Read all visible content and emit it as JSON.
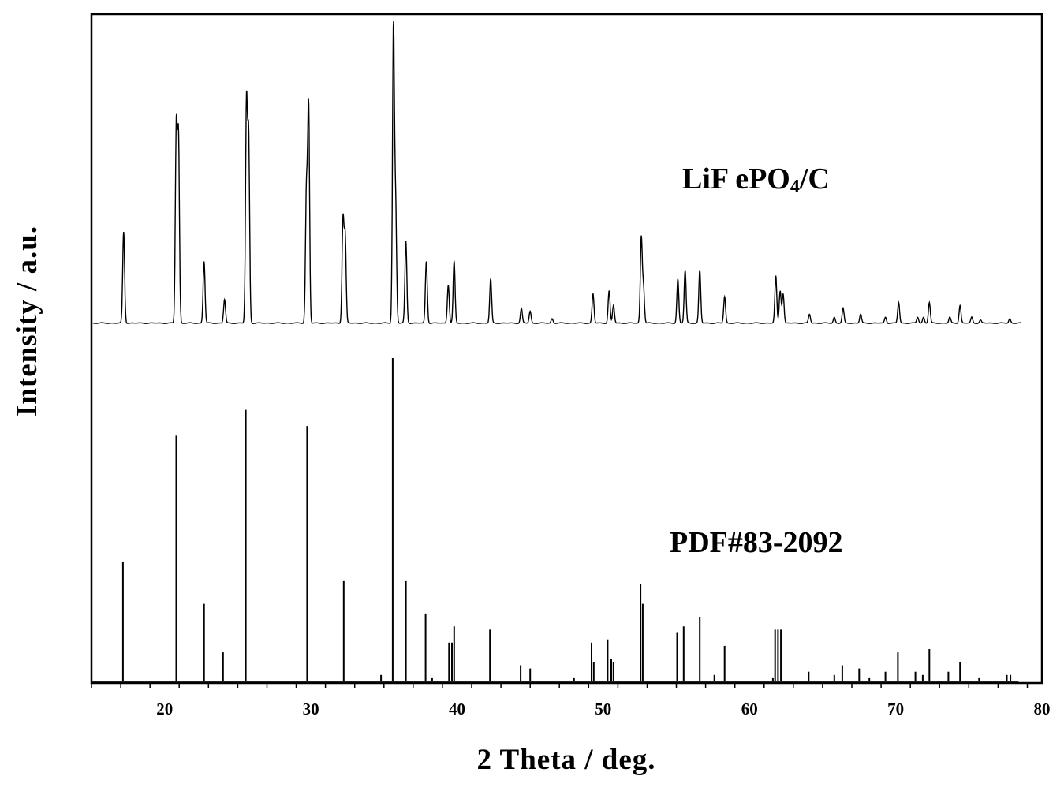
{
  "chart_data": {
    "type": "line",
    "xlabel": "2 Theta / deg.",
    "ylabel": "Intensity / a.u.",
    "xlim": [
      15,
      80
    ],
    "xticks": [
      20,
      30,
      40,
      50,
      60,
      70,
      80
    ],
    "yticks": [],
    "grid": false,
    "legend": "none",
    "series": [
      {
        "name": "LiFePO4/C",
        "style": "line",
        "label_parts": [
          "LiF ePO",
          "4",
          "/C"
        ],
        "peaks": [
          {
            "x": 17.2,
            "y": 31
          },
          {
            "x": 20.8,
            "y": 66
          },
          {
            "x": 20.95,
            "y": 62
          },
          {
            "x": 22.7,
            "y": 21
          },
          {
            "x": 24.1,
            "y": 8
          },
          {
            "x": 25.6,
            "y": 74
          },
          {
            "x": 25.75,
            "y": 62
          },
          {
            "x": 29.7,
            "y": 44
          },
          {
            "x": 29.85,
            "y": 73
          },
          {
            "x": 32.2,
            "y": 35
          },
          {
            "x": 32.35,
            "y": 29
          },
          {
            "x": 35.65,
            "y": 100
          },
          {
            "x": 35.8,
            "y": 39
          },
          {
            "x": 36.5,
            "y": 28
          },
          {
            "x": 37.9,
            "y": 21
          },
          {
            "x": 39.4,
            "y": 13
          },
          {
            "x": 39.8,
            "y": 21
          },
          {
            "x": 42.3,
            "y": 15
          },
          {
            "x": 44.4,
            "y": 5
          },
          {
            "x": 45.0,
            "y": 4
          },
          {
            "x": 46.5,
            "y": 1.5
          },
          {
            "x": 49.3,
            "y": 10
          },
          {
            "x": 50.4,
            "y": 11
          },
          {
            "x": 50.7,
            "y": 6
          },
          {
            "x": 52.6,
            "y": 29
          },
          {
            "x": 52.75,
            "y": 12
          },
          {
            "x": 55.1,
            "y": 15
          },
          {
            "x": 55.6,
            "y": 18
          },
          {
            "x": 56.6,
            "y": 18
          },
          {
            "x": 58.3,
            "y": 9
          },
          {
            "x": 61.8,
            "y": 16
          },
          {
            "x": 62.1,
            "y": 11
          },
          {
            "x": 62.3,
            "y": 10
          },
          {
            "x": 64.1,
            "y": 3
          },
          {
            "x": 65.8,
            "y": 2
          },
          {
            "x": 66.4,
            "y": 5
          },
          {
            "x": 67.6,
            "y": 3
          },
          {
            "x": 69.3,
            "y": 2
          },
          {
            "x": 70.2,
            "y": 7
          },
          {
            "x": 71.5,
            "y": 2
          },
          {
            "x": 71.9,
            "y": 2
          },
          {
            "x": 72.3,
            "y": 7
          },
          {
            "x": 73.7,
            "y": 2
          },
          {
            "x": 74.4,
            "y": 6
          },
          {
            "x": 75.2,
            "y": 2
          },
          {
            "x": 75.8,
            "y": 1
          },
          {
            "x": 77.8,
            "y": 1.5
          }
        ]
      },
      {
        "name": "PDF#83-2092",
        "style": "stick",
        "label_parts": [
          "PDF#83-2092"
        ],
        "sticks": [
          {
            "x": 17.15,
            "y": 37
          },
          {
            "x": 20.8,
            "y": 76
          },
          {
            "x": 22.7,
            "y": 24
          },
          {
            "x": 24.0,
            "y": 9
          },
          {
            "x": 25.55,
            "y": 84
          },
          {
            "x": 29.75,
            "y": 79
          },
          {
            "x": 32.25,
            "y": 31
          },
          {
            "x": 34.8,
            "y": 2
          },
          {
            "x": 35.6,
            "y": 100
          },
          {
            "x": 36.5,
            "y": 31
          },
          {
            "x": 37.85,
            "y": 21
          },
          {
            "x": 38.3,
            "y": 1
          },
          {
            "x": 39.45,
            "y": 12
          },
          {
            "x": 39.65,
            "y": 12
          },
          {
            "x": 39.8,
            "y": 17
          },
          {
            "x": 42.25,
            "y": 16
          },
          {
            "x": 44.35,
            "y": 5
          },
          {
            "x": 45.0,
            "y": 4
          },
          {
            "x": 48.0,
            "y": 1
          },
          {
            "x": 49.2,
            "y": 12
          },
          {
            "x": 49.35,
            "y": 6
          },
          {
            "x": 50.3,
            "y": 13
          },
          {
            "x": 50.55,
            "y": 7
          },
          {
            "x": 50.7,
            "y": 6
          },
          {
            "x": 52.55,
            "y": 30
          },
          {
            "x": 52.7,
            "y": 24
          },
          {
            "x": 55.05,
            "y": 15
          },
          {
            "x": 55.5,
            "y": 17
          },
          {
            "x": 56.6,
            "y": 20
          },
          {
            "x": 57.6,
            "y": 2
          },
          {
            "x": 58.3,
            "y": 11
          },
          {
            "x": 61.6,
            "y": 1
          },
          {
            "x": 61.75,
            "y": 16
          },
          {
            "x": 61.95,
            "y": 16
          },
          {
            "x": 62.15,
            "y": 16
          },
          {
            "x": 64.05,
            "y": 3
          },
          {
            "x": 65.8,
            "y": 2
          },
          {
            "x": 66.35,
            "y": 5
          },
          {
            "x": 67.5,
            "y": 4
          },
          {
            "x": 68.2,
            "y": 1
          },
          {
            "x": 69.3,
            "y": 3
          },
          {
            "x": 70.15,
            "y": 9
          },
          {
            "x": 71.35,
            "y": 3
          },
          {
            "x": 71.85,
            "y": 2
          },
          {
            "x": 72.3,
            "y": 10
          },
          {
            "x": 73.6,
            "y": 3
          },
          {
            "x": 74.4,
            "y": 6
          },
          {
            "x": 75.7,
            "y": 1
          },
          {
            "x": 77.6,
            "y": 2
          },
          {
            "x": 77.85,
            "y": 2
          }
        ]
      }
    ]
  }
}
